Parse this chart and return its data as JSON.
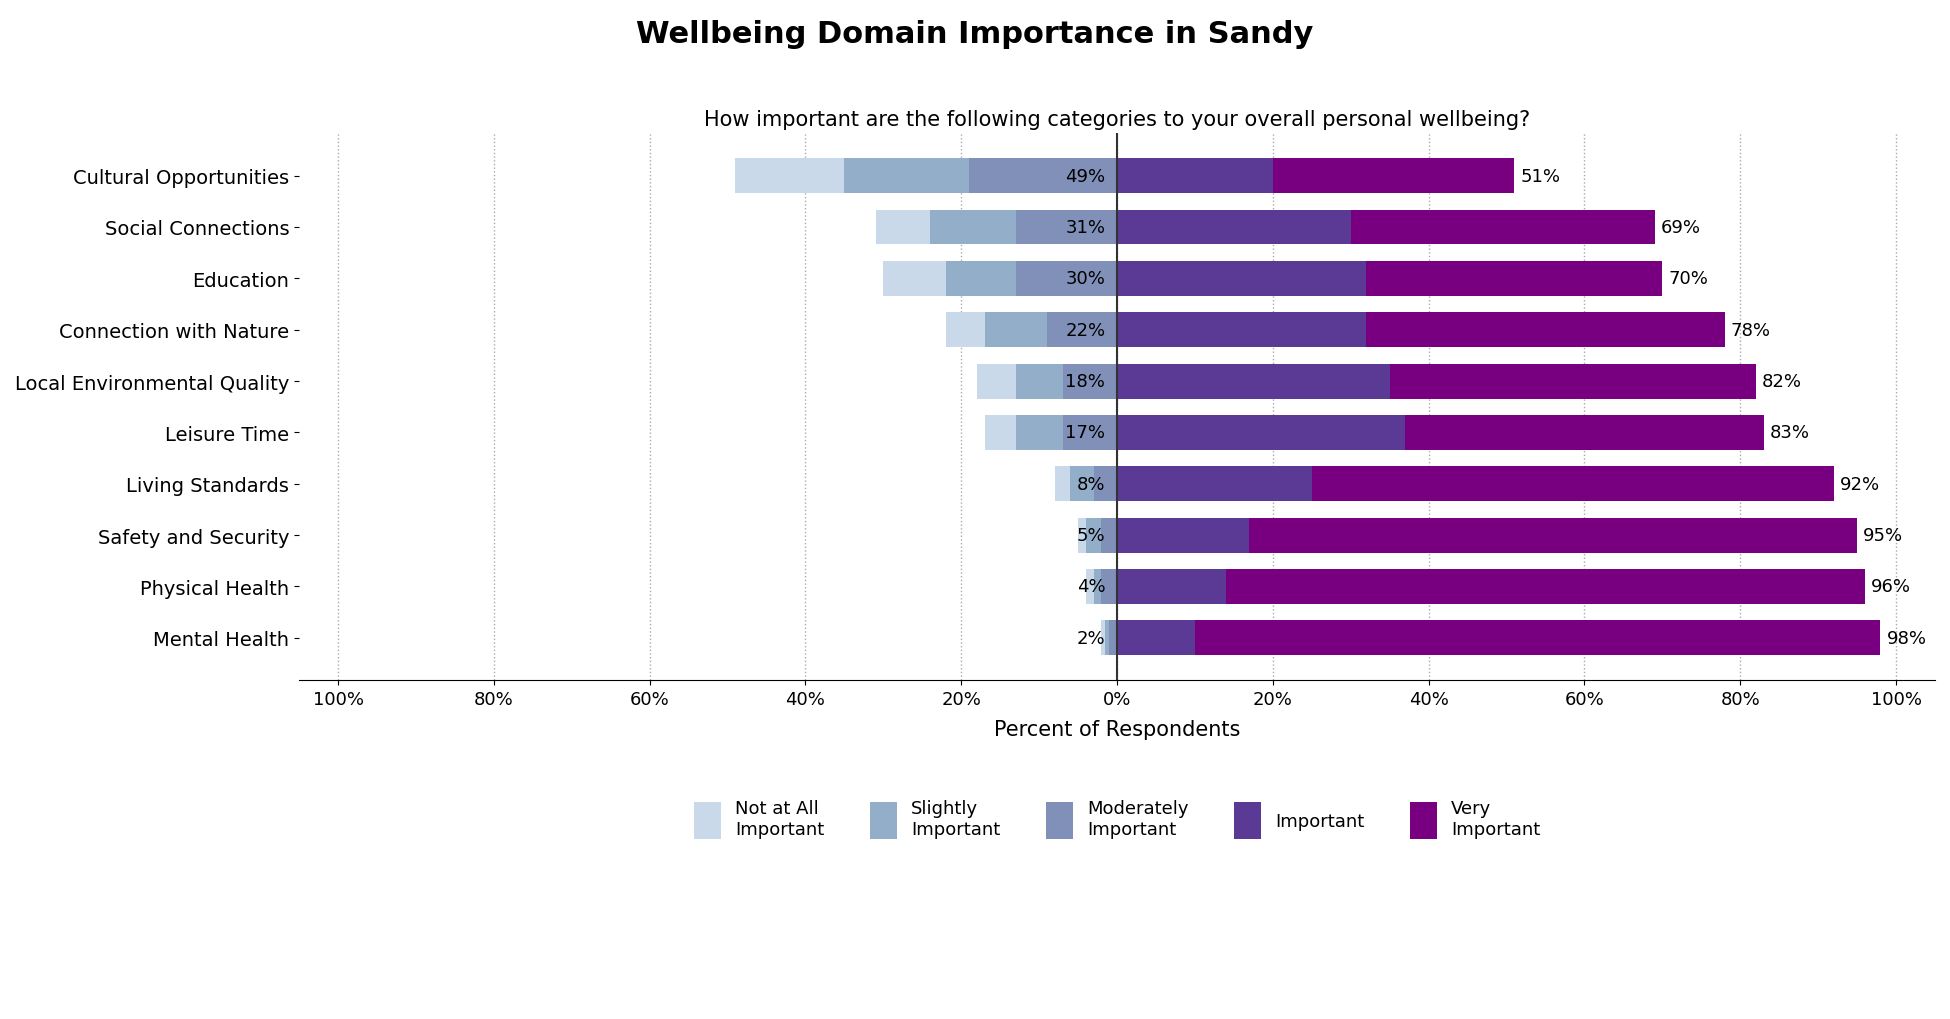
{
  "title": "Wellbeing Domain Importance in Sandy",
  "subtitle": "How important are the following categories to your overall personal wellbeing?",
  "xlabel": "Percent of Respondents",
  "categories": [
    "Cultural Opportunities",
    "Social Connections",
    "Education",
    "Connection with Nature",
    "Local Environmental Quality",
    "Leisure Time",
    "Living Standards",
    "Safety and Security",
    "Physical Health",
    "Mental Health"
  ],
  "responses": {
    "not_at_all": [
      14,
      7,
      8,
      5,
      5,
      4,
      2,
      1,
      1,
      0.5
    ],
    "slightly": [
      16,
      11,
      9,
      8,
      6,
      6,
      3,
      2,
      1,
      0.5
    ],
    "moderately": [
      19,
      13,
      13,
      9,
      7,
      7,
      3,
      2,
      2,
      1
    ],
    "important": [
      20,
      30,
      32,
      32,
      35,
      37,
      25,
      17,
      14,
      10
    ],
    "very": [
      31,
      39,
      38,
      46,
      47,
      46,
      67,
      78,
      82,
      88
    ]
  },
  "left_labels": [
    49,
    31,
    30,
    22,
    18,
    17,
    8,
    5,
    4,
    2
  ],
  "right_labels": [
    51,
    69,
    70,
    78,
    82,
    83,
    92,
    95,
    96,
    98
  ],
  "colors": {
    "not_at_all": "#c9d9ea",
    "slightly": "#92aec8",
    "moderately": "#8090b8",
    "important": "#5b3a96",
    "very": "#780080"
  },
  "legend_labels": [
    "Not at All\nImportant",
    "Slightly\nImportant",
    "Moderately\nImportant",
    "Important",
    "Very\nImportant"
  ],
  "xlim": [
    -105,
    105
  ],
  "xticks": [
    -100,
    -80,
    -60,
    -40,
    -20,
    0,
    20,
    40,
    60,
    80,
    100
  ],
  "xtick_labels": [
    "100%",
    "80%",
    "60%",
    "40%",
    "20%",
    "0%",
    "20%",
    "40%",
    "60%",
    "80%",
    "100%"
  ],
  "background_color": "#ffffff",
  "grid_color": "#aaaaaa",
  "bar_height": 0.68
}
